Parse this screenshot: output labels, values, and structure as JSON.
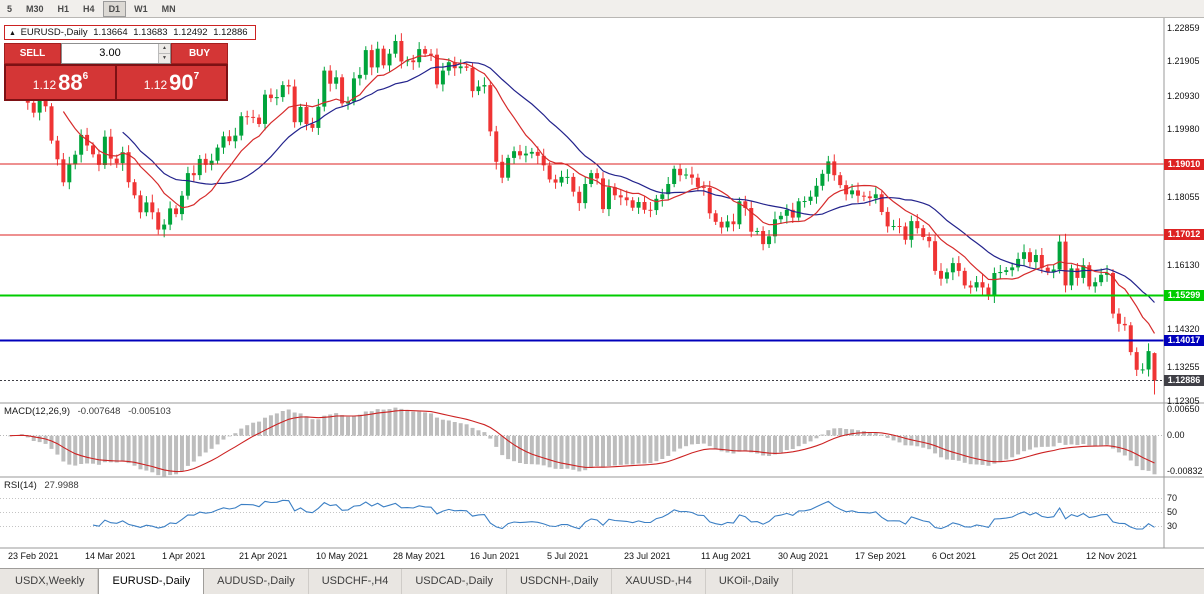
{
  "icons": {
    "up_arrow": "▲",
    "spinner_up": "▲",
    "spinner_down": "▼"
  },
  "toolbar": {
    "timeframes": [
      {
        "label": "5"
      },
      {
        "label": "M30"
      },
      {
        "label": "H1"
      },
      {
        "label": "H4"
      },
      {
        "label": "D1",
        "active": true
      },
      {
        "label": "W1"
      },
      {
        "label": "MN"
      }
    ]
  },
  "quote_header": {
    "symbol": "EURUSD-,Daily",
    "open": "1.13664",
    "high": "1.13683",
    "low": "1.12492",
    "close": "1.12886"
  },
  "trade_panel": {
    "sell_label": "SELL",
    "buy_label": "BUY",
    "volume": "3.00",
    "sell_price": {
      "big": "1.12",
      "pips": "88",
      "sup": "6"
    },
    "buy_price": {
      "big": "1.12",
      "pips": "90",
      "sup": "7"
    }
  },
  "chart_data": {
    "type": "candlestick",
    "symbol": "EURUSD-",
    "timeframe": "Daily",
    "x_labels": [
      "23 Feb 2021",
      "14 Mar 2021",
      "1 Apr 2021",
      "21 Apr 2021",
      "10 May 2021",
      "28 May 2021",
      "16 Jun 2021",
      "5 Jul 2021",
      "23 Jul 2021",
      "11 Aug 2021",
      "30 Aug 2021",
      "17 Sep 2021",
      "6 Oct 2021",
      "25 Oct 2021",
      "12 Nov 2021"
    ],
    "closes": [
      1.215,
      1.2168,
      1.2175,
      1.2075,
      1.2047,
      1.2089,
      1.2065,
      1.1968,
      1.1915,
      1.185,
      1.19,
      1.1928,
      1.1984,
      1.1954,
      1.1929,
      1.1899,
      1.1979,
      1.1917,
      1.1904,
      1.1935,
      1.185,
      1.1813,
      1.1765,
      1.1793,
      1.1765,
      1.1716,
      1.173,
      1.1776,
      1.176,
      1.1812,
      1.1876,
      1.187,
      1.1916,
      1.1899,
      1.1911,
      1.1948,
      1.198,
      1.1966,
      1.1982,
      1.2037,
      1.2035,
      1.2033,
      1.2015,
      1.2098,
      1.2088,
      1.2091,
      1.2125,
      1.2121,
      1.202,
      1.2063,
      1.2015,
      1.2004,
      1.2064,
      1.2166,
      1.2129,
      1.2147,
      1.2073,
      1.2079,
      1.2144,
      1.2154,
      1.2224,
      1.2175,
      1.2228,
      1.2181,
      1.2214,
      1.225,
      1.2192,
      1.2195,
      1.219,
      1.2227,
      1.2214,
      1.2211,
      1.2127,
      1.2166,
      1.219,
      1.2173,
      1.2178,
      1.2174,
      1.2108,
      1.2121,
      1.2125,
      1.1994,
      1.1908,
      1.1863,
      1.1919,
      1.1938,
      1.1926,
      1.1931,
      1.1936,
      1.1925,
      1.1898,
      1.1858,
      1.1849,
      1.1865,
      1.1865,
      1.1823,
      1.1791,
      1.1845,
      1.1876,
      1.1861,
      1.1774,
      1.1836,
      1.1813,
      1.1807,
      1.1799,
      1.1778,
      1.1794,
      1.1772,
      1.1771,
      1.1803,
      1.1816,
      1.1845,
      1.1888,
      1.187,
      1.1872,
      1.1863,
      1.1837,
      1.1834,
      1.1762,
      1.1738,
      1.1722,
      1.1739,
      1.1731,
      1.1796,
      1.1777,
      1.171,
      1.1712,
      1.1675,
      1.1697,
      1.1745,
      1.1755,
      1.1772,
      1.175,
      1.1796,
      1.1797,
      1.1809,
      1.184,
      1.1874,
      1.1909,
      1.187,
      1.1842,
      1.1816,
      1.1827,
      1.1812,
      1.181,
      1.1805,
      1.1816,
      1.1766,
      1.1725,
      1.1726,
      1.1725,
      1.1687,
      1.174,
      1.172,
      1.1695,
      1.1683,
      1.1599,
      1.1577,
      1.1595,
      1.1621,
      1.1599,
      1.1558,
      1.1552,
      1.1567,
      1.1552,
      1.153,
      1.1593,
      1.1596,
      1.1601,
      1.1609,
      1.1633,
      1.1652,
      1.1624,
      1.1644,
      1.1608,
      1.1596,
      1.1603,
      1.1682,
      1.1558,
      1.1606,
      1.1579,
      1.1615,
      1.1555,
      1.1567,
      1.1588,
      1.1593,
      1.1478,
      1.1449,
      1.1445,
      1.1369,
      1.1319,
      1.132,
      1.1372,
      1.1289
    ],
    "last_candle": {
      "open": 1.13664,
      "high": 1.13683,
      "low": 1.12492,
      "close": 1.12886
    },
    "price_range": [
      1.1225,
      1.2315
    ],
    "price_axis_labels": [
      {
        "price": 1.22859,
        "text": "1.22859"
      },
      {
        "price": 1.21905,
        "text": "1.21905"
      },
      {
        "price": 1.2093,
        "text": "1.20930"
      },
      {
        "price": 1.1998,
        "text": "1.19980"
      },
      {
        "price": 1.18055,
        "text": "1.18055"
      },
      {
        "price": 1.1613,
        "text": "1.16130"
      },
      {
        "price": 1.1432,
        "text": "1.14320"
      },
      {
        "price": 1.13255,
        "text": "1.13255"
      },
      {
        "price": 1.12305,
        "text": "1.12305"
      }
    ],
    "hlines": [
      {
        "price": 1.1901,
        "label": "1.19010",
        "color": "#dd2222",
        "width": 1
      },
      {
        "price": 1.17012,
        "label": "1.17012",
        "color": "#dd2222",
        "width": 1
      },
      {
        "price": 1.15299,
        "label": "1.15299",
        "color": "#00cc00",
        "width": 2
      },
      {
        "price": 1.14017,
        "label": "1.14017",
        "color": "#0000bb",
        "width": 2
      }
    ],
    "current_price": {
      "value": 1.12886,
      "text": "1.12886",
      "color": "#3f3f46"
    },
    "macd": {
      "name": "MACD(12,26,9)",
      "value_main": "-0.007648",
      "value_signal": "-0.005103",
      "fast": 12,
      "slow": 26,
      "signal_period": 9,
      "range": [
        -0.0086,
        0.0068
      ],
      "axis_labels": [
        {
          "value": 0.0065,
          "text": "0.00650"
        },
        {
          "value": 0,
          "text": "0.00"
        },
        {
          "value": -0.00832,
          "text": "-0.00832"
        }
      ]
    },
    "rsi": {
      "name": "RSI(14)",
      "value": "27.9988",
      "period": 14,
      "range": [
        0,
        100
      ],
      "levels": [
        {
          "value": 70,
          "text": "70"
        },
        {
          "value": 50,
          "text": "50"
        },
        {
          "value": 30,
          "text": "30"
        }
      ]
    }
  },
  "bottom_tabs": [
    {
      "label": "USDX,Weekly"
    },
    {
      "label": "EURUSD-,Daily",
      "active": true
    },
    {
      "label": "AUDUSD-,Daily"
    },
    {
      "label": "USDCHF-,H4"
    },
    {
      "label": "USDCAD-,Daily"
    },
    {
      "label": "USDCNH-,Daily"
    },
    {
      "label": "XAUUSD-,H4"
    },
    {
      "label": "UKOil-,Daily"
    }
  ],
  "colors": {
    "up": "#00a43b",
    "down": "#ef3434",
    "ma_fast": "#d62b2b",
    "ma_slow": "#23238c",
    "macd_bar": "#bdbdbd",
    "macd_signal": "#cc2222",
    "rsi_line": "#3b7fc4",
    "accent_red": "#d43636"
  }
}
